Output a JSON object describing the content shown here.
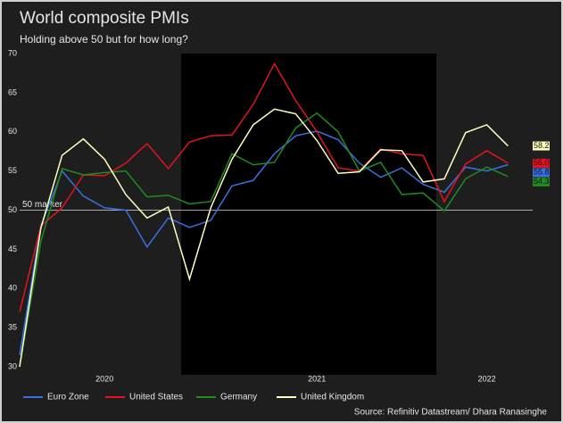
{
  "chart_data": {
    "type": "line",
    "title": "World composite PMIs",
    "subtitle": "Holding above 50 but for how long?",
    "source": "Source: Refinitiv Datastream/ Dhara Ranasinghe",
    "categories": [
      null,
      null,
      null,
      null,
      "2020",
      null,
      null,
      null,
      null,
      null,
      null,
      null,
      null,
      null,
      "2021",
      null,
      null,
      null,
      null,
      null,
      null,
      null,
      "2022",
      null
    ],
    "series": [
      {
        "name": "Euro Zone",
        "color": "#3a6fe0",
        "values": [
          31.5,
          48,
          55,
          51.8,
          50.3,
          50,
          45.3,
          49,
          47.8,
          48.7,
          53.1,
          53.8,
          57.2,
          59.5,
          60.1,
          59,
          56,
          54.2,
          55.4,
          53.3,
          52.3,
          55.5,
          55,
          55.8
        ],
        "value_labels": [
          null,
          null,
          null,
          null,
          null,
          null,
          null,
          null,
          null,
          null,
          null,
          null,
          null,
          null,
          null,
          null,
          null,
          null,
          null,
          null,
          null,
          null,
          null,
          "55.8"
        ]
      },
      {
        "name": "United States",
        "color": "#e3141b",
        "values": [
          37,
          48,
          50.3,
          54.5,
          54.4,
          56,
          58.5,
          55.3,
          58.7,
          59.5,
          59.6,
          63.5,
          68.7,
          64,
          60,
          55.4,
          55,
          57.8,
          57.2,
          57,
          51.1,
          55.9,
          57.6,
          56
        ],
        "value_labels": [
          null,
          null,
          null,
          null,
          null,
          null,
          null,
          null,
          null,
          null,
          null,
          null,
          null,
          null,
          null,
          null,
          null,
          null,
          null,
          null,
          null,
          null,
          null,
          "56.0"
        ]
      },
      {
        "name": "Germany",
        "color": "#1e8c1e",
        "values": [
          30,
          46,
          55.3,
          54.5,
          54.8,
          55,
          51.7,
          51.9,
          50.8,
          51.1,
          57.2,
          55.8,
          56.1,
          60.5,
          62.4,
          60,
          55,
          56.1,
          52,
          52.2,
          49.9,
          54,
          55.5,
          54.3
        ],
        "value_labels": [
          null,
          null,
          null,
          null,
          null,
          null,
          null,
          null,
          null,
          null,
          null,
          null,
          null,
          null,
          null,
          null,
          null,
          null,
          null,
          null,
          null,
          null,
          null,
          "54.3"
        ]
      },
      {
        "name": "United Kingdom",
        "color": "#ffffbf",
        "values": [
          30,
          47.7,
          57,
          59.1,
          56.5,
          52,
          49,
          50.4,
          41.2,
          50.3,
          56.5,
          60.9,
          62.9,
          62.3,
          58.9,
          54.7,
          54.9,
          57.7,
          57.6,
          53.6,
          54,
          59.9,
          60.9,
          58.2
        ],
        "value_labels": [
          null,
          null,
          null,
          null,
          null,
          null,
          null,
          null,
          null,
          null,
          null,
          null,
          null,
          null,
          null,
          null,
          null,
          null,
          null,
          null,
          null,
          null,
          null,
          "58.2"
        ]
      }
    ],
    "reference_line": {
      "value": 50,
      "label": "50 marker"
    },
    "ylim": [
      30,
      70
    ],
    "yticks": [
      30,
      35,
      40,
      45,
      50,
      55,
      60,
      65,
      70
    ]
  }
}
